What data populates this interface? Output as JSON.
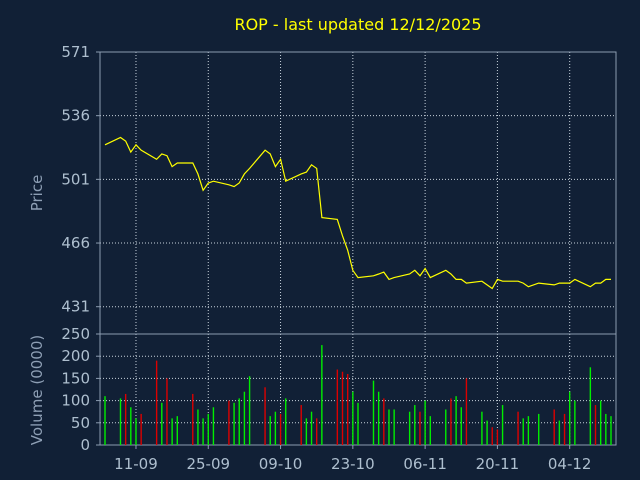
{
  "chart_data": [
    {
      "type": "line",
      "title": "ROP - last updated 12/12/2025",
      "ylabel": "Price",
      "ylim": [
        416,
        571
      ],
      "y_ticks": [
        "571",
        "536",
        "501",
        "466",
        "431"
      ],
      "x_ticks": [
        "11-09",
        "25-09",
        "09-10",
        "23-10",
        "06-11",
        "20-11",
        "04-12"
      ],
      "x_range": [
        "2025-09-05",
        "2025-12-12"
      ],
      "grid": true,
      "line_color": "#ffff00",
      "series": [
        {
          "x": [
            "2025-09-05",
            "2025-09-08",
            "2025-09-09",
            "2025-09-10",
            "2025-09-11",
            "2025-09-12",
            "2025-09-15",
            "2025-09-16",
            "2025-09-17",
            "2025-09-18",
            "2025-09-19",
            "2025-09-22",
            "2025-09-23",
            "2025-09-24",
            "2025-09-25",
            "2025-09-26",
            "2025-09-29",
            "2025-09-30",
            "2025-10-01",
            "2025-10-02",
            "2025-10-03",
            "2025-10-06",
            "2025-10-07",
            "2025-10-08",
            "2025-10-09",
            "2025-10-10",
            "2025-10-13",
            "2025-10-14",
            "2025-10-15",
            "2025-10-16",
            "2025-10-17",
            "2025-10-20",
            "2025-10-21",
            "2025-10-22",
            "2025-10-23",
            "2025-10-24",
            "2025-10-27",
            "2025-10-28",
            "2025-10-29",
            "2025-10-30",
            "2025-10-31",
            "2025-11-03",
            "2025-11-04",
            "2025-11-05",
            "2025-11-06",
            "2025-11-07",
            "2025-11-10",
            "2025-11-11",
            "2025-11-12",
            "2025-11-13",
            "2025-11-14",
            "2025-11-17",
            "2025-11-18",
            "2025-11-19",
            "2025-11-20",
            "2025-11-21",
            "2025-11-24",
            "2025-11-25",
            "2025-11-26",
            "2025-11-28",
            "2025-12-01",
            "2025-12-02",
            "2025-12-03",
            "2025-12-04",
            "2025-12-05",
            "2025-12-08",
            "2025-12-09",
            "2025-12-10",
            "2025-12-11",
            "2025-12-12"
          ],
          "y": [
            520,
            524,
            522,
            516,
            520,
            517,
            512,
            515,
            514,
            508,
            510,
            510,
            504,
            495,
            499,
            500,
            498,
            497,
            499,
            504,
            507,
            517,
            515,
            508,
            512,
            500,
            504,
            505,
            509,
            507,
            480,
            479,
            470,
            462,
            451,
            447,
            448,
            449,
            450,
            446,
            447,
            449,
            451,
            448,
            452,
            447,
            451,
            449,
            446,
            446,
            444,
            445,
            443,
            441,
            446,
            445,
            445,
            444,
            442,
            444,
            443,
            444,
            444,
            444,
            446,
            442,
            444,
            444,
            446,
            446
          ]
        }
      ]
    },
    {
      "type": "bar",
      "ylabel": "Volume (0000)",
      "ylim": [
        0,
        250
      ],
      "y_ticks": [
        "250",
        "200",
        "150",
        "100",
        "50",
        "0"
      ],
      "up_color": "#00ee00",
      "down_color": "#dd0000",
      "series": [
        {
          "x": [
            "2025-09-05",
            "2025-09-08",
            "2025-09-09",
            "2025-09-10",
            "2025-09-11",
            "2025-09-12",
            "2025-09-15",
            "2025-09-16",
            "2025-09-17",
            "2025-09-18",
            "2025-09-19",
            "2025-09-22",
            "2025-09-23",
            "2025-09-24",
            "2025-09-25",
            "2025-09-26",
            "2025-09-29",
            "2025-09-30",
            "2025-10-01",
            "2025-10-02",
            "2025-10-03",
            "2025-10-06",
            "2025-10-07",
            "2025-10-08",
            "2025-10-09",
            "2025-10-10",
            "2025-10-13",
            "2025-10-14",
            "2025-10-15",
            "2025-10-16",
            "2025-10-17",
            "2025-10-20",
            "2025-10-21",
            "2025-10-22",
            "2025-10-23",
            "2025-10-24",
            "2025-10-27",
            "2025-10-28",
            "2025-10-29",
            "2025-10-30",
            "2025-10-31",
            "2025-11-03",
            "2025-11-04",
            "2025-11-05",
            "2025-11-06",
            "2025-11-07",
            "2025-11-10",
            "2025-11-11",
            "2025-11-12",
            "2025-11-13",
            "2025-11-14",
            "2025-11-17",
            "2025-11-18",
            "2025-11-19",
            "2025-11-20",
            "2025-11-21",
            "2025-11-24",
            "2025-11-25",
            "2025-11-26",
            "2025-11-28",
            "2025-12-01",
            "2025-12-02",
            "2025-12-03",
            "2025-12-04",
            "2025-12-05",
            "2025-12-08",
            "2025-12-09",
            "2025-12-10",
            "2025-12-11",
            "2025-12-12"
          ],
          "values": [
            110,
            105,
            115,
            85,
            60,
            70,
            190,
            95,
            150,
            60,
            65,
            115,
            80,
            60,
            70,
            85,
            100,
            95,
            105,
            120,
            155,
            130,
            65,
            75,
            70,
            105,
            90,
            60,
            75,
            60,
            225,
            170,
            165,
            160,
            120,
            95,
            145,
            120,
            105,
            80,
            80,
            75,
            90,
            75,
            100,
            65,
            80,
            105,
            110,
            85,
            150,
            75,
            55,
            40,
            35,
            90,
            75,
            60,
            65,
            70,
            80,
            55,
            70,
            120,
            100,
            175,
            90,
            100,
            70,
            65
          ],
          "direction": [
            "up",
            "up",
            "down",
            "up",
            "up",
            "down",
            "down",
            "up",
            "down",
            "up",
            "up",
            "down",
            "up",
            "up",
            "up",
            "up",
            "down",
            "up",
            "up",
            "up",
            "up",
            "down",
            "up",
            "up",
            "down",
            "up",
            "down",
            "up",
            "up",
            "down",
            "up",
            "down",
            "down",
            "down",
            "up",
            "up",
            "up",
            "up",
            "down",
            "up",
            "up",
            "up",
            "up",
            "down",
            "up",
            "up",
            "up",
            "down",
            "up",
            "up",
            "down",
            "up",
            "up",
            "down",
            "down",
            "up",
            "down",
            "up",
            "up",
            "up",
            "down",
            "up",
            "down",
            "up",
            "up",
            "up",
            "down",
            "up",
            "up",
            "up"
          ]
        }
      ]
    }
  ]
}
